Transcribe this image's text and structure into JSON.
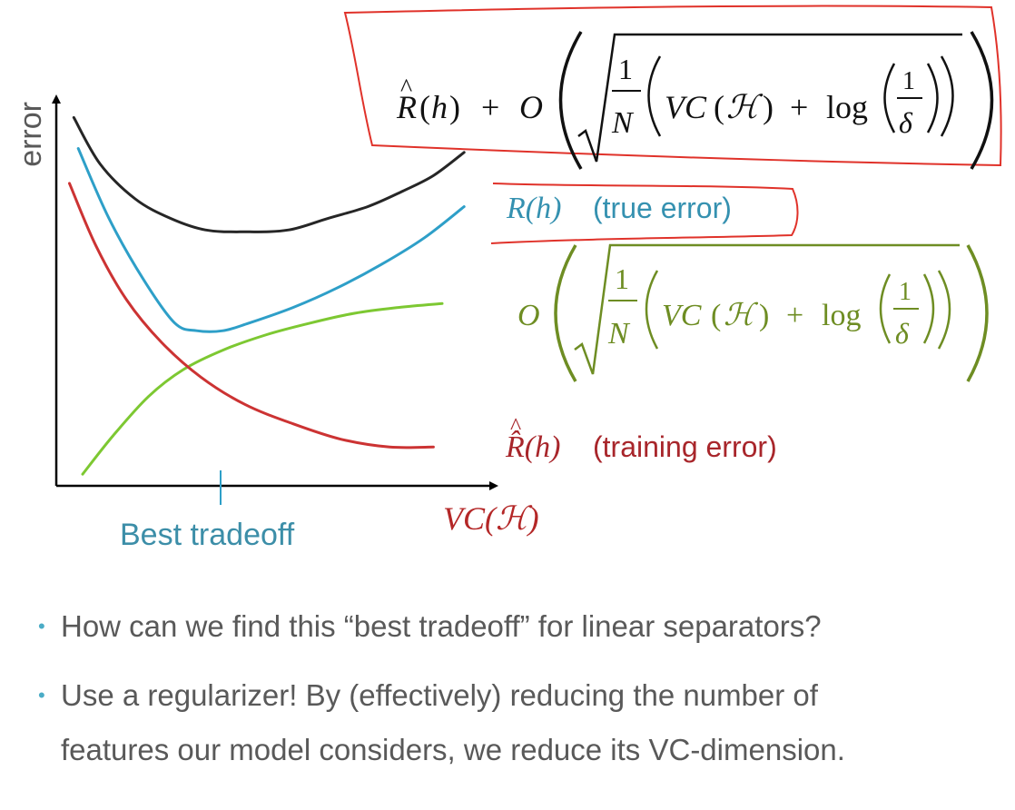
{
  "chart_data": {
    "type": "line",
    "title": "",
    "ylabel": "error",
    "xlabel": "VC(ℋ)",
    "x_range": [
      0,
      10
    ],
    "y_range": [
      0,
      10
    ],
    "grid": false,
    "x_marker": {
      "x": 3.7,
      "label": "Best tradeoff"
    },
    "series": [
      {
        "name": "bound",
        "label": "R̂(h) + O(√(1/N (VC(ℋ) + log(1/δ))))",
        "color": "#262626",
        "x": [
          0.4,
          1.0,
          1.8,
          2.6,
          3.4,
          4.3,
          5.3,
          6.2,
          7.1,
          7.9,
          8.6,
          9.3
        ],
        "y": [
          9.5,
          8.3,
          7.4,
          6.9,
          6.6,
          6.55,
          6.6,
          6.9,
          7.2,
          7.6,
          8.0,
          8.6
        ]
      },
      {
        "name": "true-error",
        "label_math": "R(h)",
        "label_text": "(true error)",
        "color": "#2e9fc8",
        "x": [
          0.5,
          1.2,
          2.0,
          2.7,
          3.2,
          3.8,
          4.4,
          5.4,
          6.4,
          7.4,
          8.4,
          9.3
        ],
        "y": [
          8.7,
          6.9,
          5.3,
          4.2,
          4.0,
          4.0,
          4.2,
          4.6,
          5.1,
          5.7,
          6.4,
          7.2
        ]
      },
      {
        "name": "complexity",
        "label": "O(√(1/N (VC(ℋ) + log(1/δ))))",
        "color": "#7dc832",
        "x": [
          0.6,
          1.3,
          2.1,
          2.9,
          3.8,
          4.8,
          5.8,
          6.8,
          7.8,
          8.8
        ],
        "y": [
          0.3,
          1.3,
          2.3,
          3.0,
          3.5,
          3.9,
          4.2,
          4.45,
          4.6,
          4.7
        ]
      },
      {
        "name": "training-error",
        "label_math": "R̂(h)",
        "label_text": "(training error)",
        "color": "#cc3333",
        "x": [
          0.3,
          0.9,
          1.6,
          2.4,
          3.3,
          4.3,
          5.4,
          6.5,
          7.6,
          8.6
        ],
        "y": [
          7.8,
          6.2,
          4.8,
          3.7,
          2.8,
          2.1,
          1.6,
          1.2,
          1.0,
          1.0
        ]
      }
    ]
  },
  "formulas": {
    "bound": {
      "hat": "^",
      "r": "R",
      "h_open": "(",
      "h": "h",
      "h_close": ")",
      "plus": "+",
      "big_o": "O",
      "frac_num": "1",
      "frac_den": "N",
      "vc": "VC",
      "hyp_open": "(",
      "hyp": "ℋ",
      "hyp_close": ")",
      "plus2": "+",
      "log": "log",
      "delta_num": "1",
      "delta_den": "δ"
    },
    "complexity": {
      "big_o": "O",
      "frac_num": "1",
      "frac_den": "N",
      "vc": "VC",
      "hyp_open": "(",
      "hyp": "ℋ",
      "hyp_close": ")",
      "plus": "+",
      "log": "log",
      "delta_num": "1",
      "delta_den": "δ"
    }
  },
  "colors": {
    "axis": "#000000",
    "annotation_box": "#e0322a",
    "bullet_dot": "#4bacc6",
    "bullet_text": "#595959"
  },
  "bullets": [
    {
      "lines": [
        "How can we find this “best tradeoff” for linear separators?"
      ]
    },
    {
      "lines": [
        "Use a regularizer! By (effectively) reducing the number of",
        "features our model considers, we reduce its VC-dimension."
      ]
    }
  ]
}
